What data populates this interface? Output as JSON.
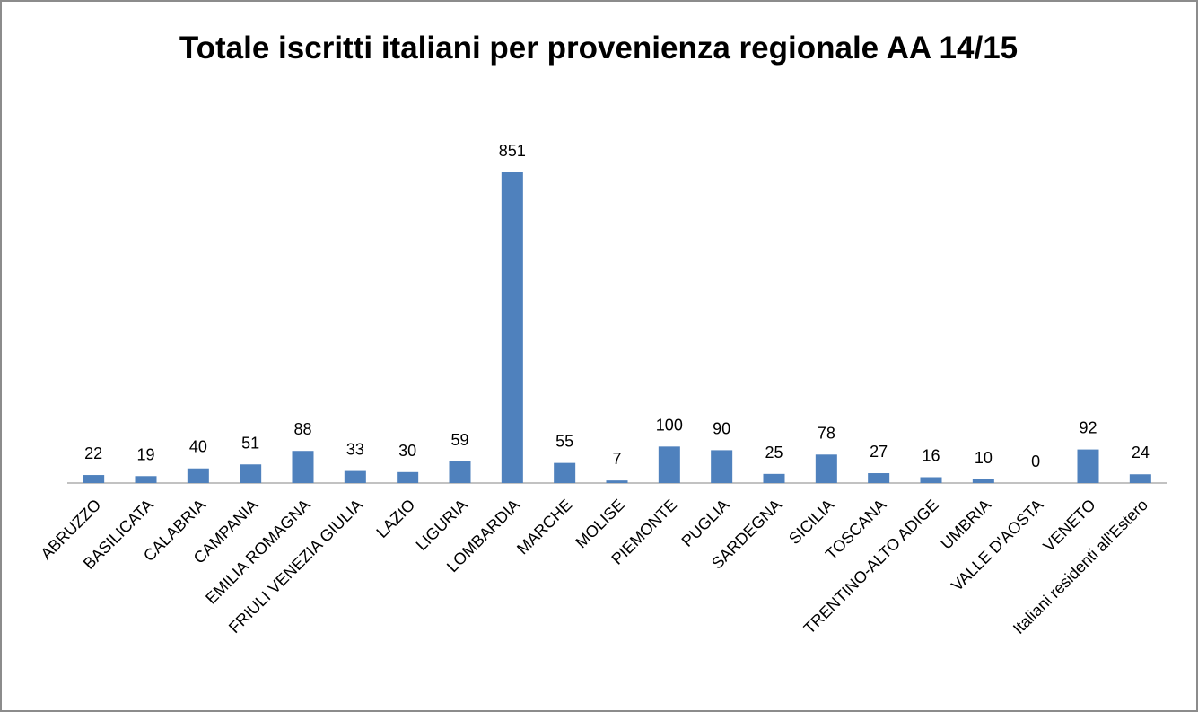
{
  "chart_data": {
    "type": "bar",
    "title": "Totale iscritti italiani per provenienza regionale AA 14/15",
    "categories": [
      "ABRUZZO",
      "BASILICATA",
      "CALABRIA",
      "CAMPANIA",
      "EMILIA ROMAGNA",
      "FRIULI VENEZIA GIULIA",
      "LAZIO",
      "LIGURIA",
      "LOMBARDIA",
      "MARCHE",
      "MOLISE",
      "PIEMONTE",
      "PUGLIA",
      "SARDEGNA",
      "SICILIA",
      "TOSCANA",
      "TRENTINO-ALTO ADIGE",
      "UMBRIA",
      "VALLE D'AOSTA",
      "VENETO",
      "Italiani residenti all'Estero"
    ],
    "values": [
      22,
      19,
      40,
      51,
      88,
      33,
      30,
      59,
      851,
      55,
      7,
      100,
      90,
      25,
      78,
      27,
      16,
      10,
      0,
      92,
      24
    ],
    "color": "#4f81bd"
  }
}
